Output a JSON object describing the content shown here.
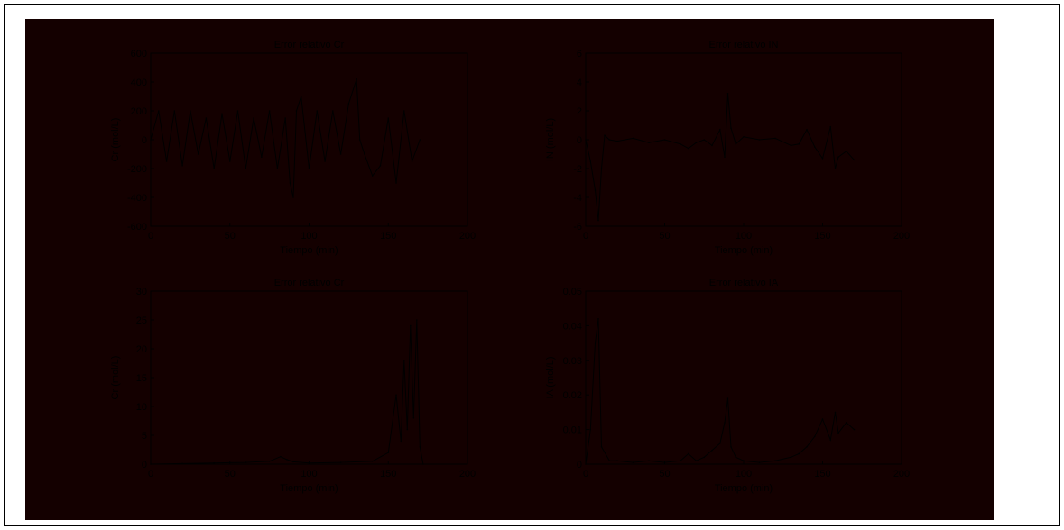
{
  "colors": {
    "figure_background": "#140000",
    "plot_background": "#140000",
    "axes_color": "#000000",
    "line_color": "#000000",
    "page_background": "#ffffff"
  },
  "chart_data": [
    {
      "type": "line",
      "title": "Error relativo Cr",
      "xlabel": "Tiempo (min)",
      "ylabel": "Cr (mol/L)",
      "xlim": [
        0,
        200
      ],
      "ylim": [
        -600,
        600
      ],
      "xticks": [
        "0",
        "50",
        "100",
        "150",
        "200"
      ],
      "yticks": [
        "-600",
        "-400",
        "-200",
        "0",
        "200",
        "400",
        "600"
      ],
      "grid": false,
      "series": [
        {
          "x": [
            0,
            5,
            10,
            15,
            20,
            25,
            30,
            35,
            40,
            45,
            50,
            55,
            60,
            65,
            70,
            75,
            80,
            85,
            88,
            90,
            92,
            95,
            100,
            105,
            110,
            115,
            120,
            125,
            130,
            132,
            135,
            140,
            145,
            150,
            155,
            160,
            165,
            170
          ],
          "y": [
            0,
            200,
            -150,
            200,
            -180,
            200,
            -100,
            150,
            -200,
            180,
            -150,
            200,
            -200,
            150,
            -120,
            200,
            -200,
            150,
            -300,
            -400,
            200,
            300,
            -200,
            200,
            -150,
            200,
            -100,
            250,
            420,
            0,
            -100,
            -250,
            -180,
            150,
            -300,
            200,
            -150,
            0
          ]
        }
      ]
    },
    {
      "type": "line",
      "title": "Error relativo IN",
      "xlabel": "Tiempo (min)",
      "ylabel": "IN (mol/L)",
      "xlim": [
        0,
        200
      ],
      "ylim": [
        -6,
        6
      ],
      "xticks": [
        "0",
        "50",
        "100",
        "150",
        "200"
      ],
      "yticks": [
        "-6",
        "-4",
        "-2",
        "0",
        "2",
        "4",
        "6"
      ],
      "grid": false,
      "series": [
        {
          "x": [
            0,
            3,
            6,
            8,
            10,
            12,
            15,
            20,
            30,
            40,
            50,
            60,
            65,
            70,
            75,
            80,
            85,
            88,
            90,
            92,
            95,
            100,
            110,
            120,
            130,
            135,
            140,
            145,
            150,
            155,
            158,
            160,
            165,
            170
          ],
          "y": [
            0,
            -1.5,
            -3.5,
            -5.6,
            -2,
            0.3,
            0,
            -0.1,
            0.1,
            -0.2,
            0,
            -0.3,
            -0.6,
            -0.2,
            0,
            -0.4,
            0.7,
            -1.2,
            3.2,
            0.8,
            -0.3,
            0.2,
            0,
            0.1,
            -0.4,
            -0.3,
            0.7,
            -0.5,
            -1.3,
            0.9,
            -2,
            -1.2,
            -0.8,
            -1.4
          ]
        }
      ]
    },
    {
      "type": "line",
      "title": "Error relativo Cr",
      "xlabel": "Tiempo (min)",
      "ylabel": "Cr (mol/L)",
      "xlim": [
        0,
        200
      ],
      "ylim": [
        0,
        30
      ],
      "xticks": [
        "0",
        "50",
        "100",
        "150",
        "200"
      ],
      "yticks": [
        "0",
        "5",
        "10",
        "15",
        "20",
        "25",
        "30"
      ],
      "grid": false,
      "series": [
        {
          "x": [
            0,
            20,
            40,
            60,
            75,
            82,
            86,
            90,
            100,
            120,
            140,
            150,
            155,
            158,
            160,
            162,
            164,
            166,
            168,
            170,
            172
          ],
          "y": [
            0,
            0.1,
            0.2,
            0.3,
            0.5,
            1.3,
            0.8,
            0.4,
            0.2,
            0.3,
            0.5,
            2,
            12,
            4,
            18,
            6,
            24,
            8,
            25,
            3,
            0
          ]
        }
      ]
    },
    {
      "type": "line",
      "title": "Error relativo IA",
      "xlabel": "Tiempo (min)",
      "ylabel": "IA (mol/L)",
      "xlim": [
        0,
        200
      ],
      "ylim": [
        0,
        0.05
      ],
      "xticks": [
        "0",
        "50",
        "100",
        "150",
        "200"
      ],
      "yticks": [
        "0",
        "0.01",
        "0.02",
        "0.03",
        "0.04",
        "0.05"
      ],
      "grid": false,
      "series": [
        {
          "x": [
            0,
            3,
            6,
            8,
            10,
            15,
            20,
            30,
            40,
            50,
            60,
            65,
            70,
            75,
            80,
            85,
            88,
            90,
            92,
            95,
            100,
            110,
            120,
            130,
            135,
            140,
            145,
            150,
            155,
            158,
            160,
            165,
            170
          ],
          "y": [
            0,
            0.01,
            0.035,
            0.042,
            0.005,
            0.001,
            0.001,
            0.0005,
            0.001,
            0.0005,
            0.001,
            0.003,
            0.001,
            0.002,
            0.004,
            0.006,
            0.012,
            0.019,
            0.005,
            0.002,
            0.001,
            0.0005,
            0.001,
            0.002,
            0.003,
            0.005,
            0.008,
            0.013,
            0.007,
            0.015,
            0.009,
            0.012,
            0.01
          ]
        }
      ]
    }
  ]
}
